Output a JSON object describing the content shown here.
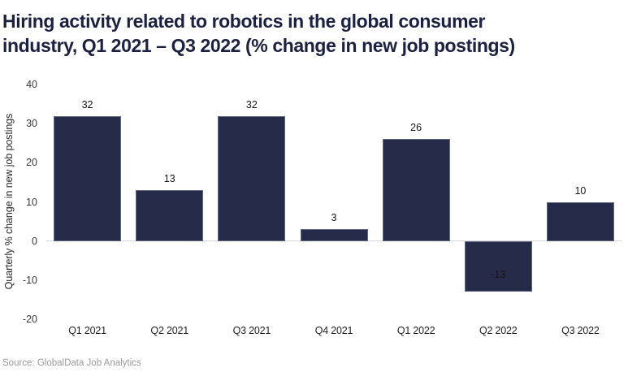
{
  "header": {
    "title_line1": "Hiring activity related to robotics in the global consumer",
    "title_line2": "industry, Q1 2021 – Q3 2022 (% change in new job postings)"
  },
  "source": "Source: GlobalData Job Analytics",
  "colors": {
    "bar": "#272b4a",
    "title": "#1c2041",
    "axis_text": "#383838",
    "zero_line": "#d6d6d6",
    "source_text": "#9a9a9a"
  },
  "chart_data": {
    "type": "bar",
    "title": "Hiring activity related to robotics in the global consumer industry, Q1 2021 – Q3 2022 (% change in new job postings)",
    "categories": [
      "Q1 2021",
      "Q2 2021",
      "Q3 2021",
      "Q4 2021",
      "Q1 2022",
      "Q2 2022",
      "Q3 2022"
    ],
    "values": [
      32,
      13,
      32,
      3,
      26,
      -13,
      10
    ],
    "xlabel": "",
    "ylabel": "Quarterly % change in new job postings",
    "ylim": [
      -20,
      40
    ],
    "yticks": [
      40,
      30,
      20,
      10,
      0,
      -10,
      -20
    ],
    "grid": false,
    "legend_position": "none",
    "bar_color": "#272b4a"
  }
}
